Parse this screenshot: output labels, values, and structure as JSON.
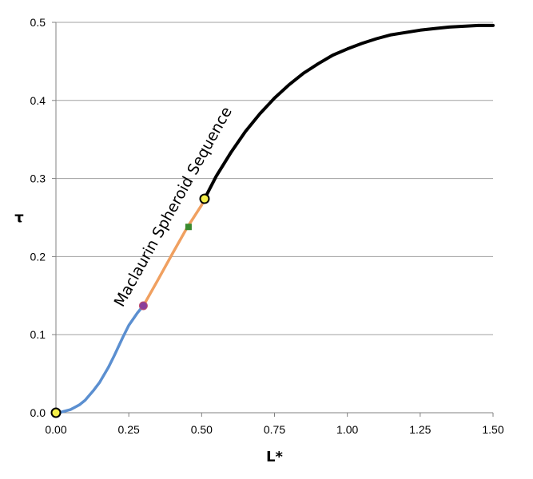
{
  "chart_data": {
    "type": "line",
    "title": "",
    "xlabel": "L*",
    "ylabel": "τ",
    "xlim": [
      0,
      1.5
    ],
    "ylim": [
      0,
      0.5
    ],
    "x_ticks": [
      "0.00",
      "0.25",
      "0.50",
      "0.75",
      "1.00",
      "1.25",
      "1.50"
    ],
    "y_ticks": [
      "0.0",
      "0.1",
      "0.2",
      "0.3",
      "0.4",
      "0.5"
    ],
    "grid": "horizontal",
    "annotation": "Maclaurin Spheroid Sequence",
    "colors": {
      "segment_1": "#5b8fd0",
      "segment_2": "#f0a060",
      "segment_3": "#000000",
      "marker_yellow": "#f5f04a",
      "marker_purple": "#8a3f9a",
      "marker_green": "#3a8a2e"
    },
    "series": [
      {
        "x": [
          0.0,
          0.02,
          0.05,
          0.08,
          0.1,
          0.13,
          0.15,
          0.18,
          0.2,
          0.23,
          0.25,
          0.28,
          0.3
        ],
        "y": [
          0.0,
          0.001,
          0.004,
          0.01,
          0.016,
          0.029,
          0.039,
          0.058,
          0.073,
          0.097,
          0.112,
          0.128,
          0.137
        ]
      },
      {
        "x": [
          0.3,
          0.35,
          0.4,
          0.45,
          0.5,
          0.51
        ],
        "y": [
          0.137,
          0.17,
          0.204,
          0.237,
          0.266,
          0.274
        ]
      },
      {
        "x": [
          0.51,
          0.55,
          0.6,
          0.65,
          0.7,
          0.75,
          0.8,
          0.85,
          0.9,
          0.95,
          1.0,
          1.05,
          1.1,
          1.15,
          1.2,
          1.25,
          1.3,
          1.35,
          1.4,
          1.45,
          1.5
        ],
        "y": [
          0.274,
          0.303,
          0.333,
          0.36,
          0.383,
          0.403,
          0.42,
          0.435,
          0.447,
          0.458,
          0.466,
          0.473,
          0.479,
          0.484,
          0.487,
          0.49,
          0.492,
          0.494,
          0.495,
          0.496,
          0.496
        ]
      }
    ],
    "markers": [
      {
        "x": 0.0,
        "y": 0.0,
        "shape": "circle",
        "color": "marker_yellow"
      },
      {
        "x": 0.51,
        "y": 0.274,
        "shape": "circle",
        "color": "marker_yellow"
      },
      {
        "x": 0.3,
        "y": 0.137,
        "shape": "circle",
        "color": "marker_purple"
      },
      {
        "x": 0.455,
        "y": 0.238,
        "shape": "square",
        "color": "marker_green"
      }
    ]
  }
}
